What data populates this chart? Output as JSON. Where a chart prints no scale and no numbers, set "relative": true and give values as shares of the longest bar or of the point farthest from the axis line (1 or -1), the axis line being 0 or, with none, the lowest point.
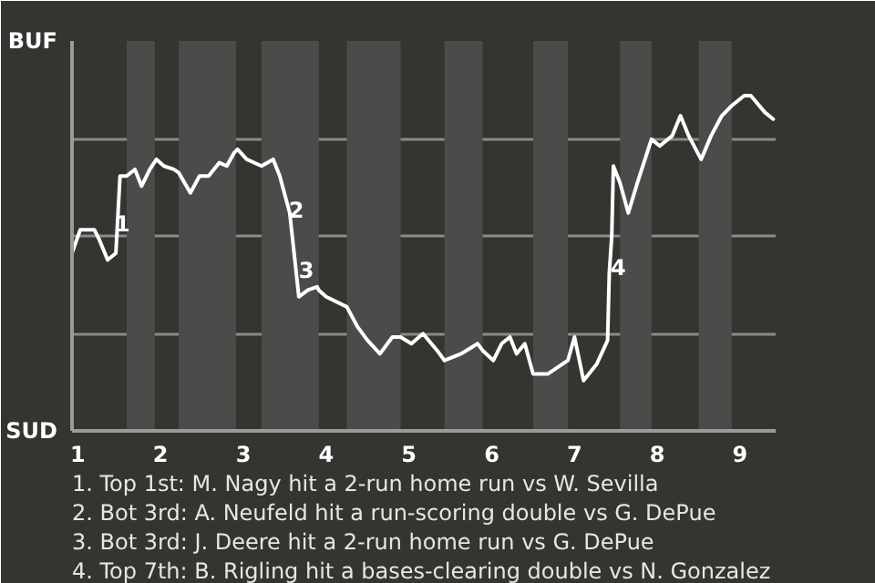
{
  "chart_data": {
    "type": "line",
    "relative": true,
    "xlim": [
      0.93,
      9.43
    ],
    "xticks": [
      {
        "value": 1,
        "label": "1"
      },
      {
        "value": 2,
        "label": "2"
      },
      {
        "value": 3,
        "label": "3"
      },
      {
        "value": 4,
        "label": "4"
      },
      {
        "value": 5,
        "label": "5"
      },
      {
        "value": 6,
        "label": "6"
      },
      {
        "value": 7,
        "label": "7"
      },
      {
        "value": 8,
        "label": "8"
      },
      {
        "value": 9,
        "label": "9"
      }
    ],
    "grid": "y",
    "marker": "none",
    "line_style": "solid",
    "x": [
      0.93,
      1.03,
      1.2,
      1.26,
      1.36,
      1.46,
      1.51,
      1.59,
      1.69,
      1.77,
      1.87,
      1.95,
      2.04,
      2.16,
      2.22,
      2.36,
      2.47,
      2.58,
      2.71,
      2.8,
      2.89,
      2.93,
      3.04,
      3.22,
      3.36,
      3.44,
      3.56,
      3.6,
      3.67,
      3.78,
      3.89,
      3.91,
      4.0,
      4.25,
      4.38,
      4.5,
      4.65,
      4.8,
      4.9,
      5.03,
      5.17,
      5.34,
      5.43,
      5.63,
      5.83,
      5.89,
      6.02,
      6.12,
      6.22,
      6.3,
      6.4,
      6.5,
      6.68,
      6.92,
      7.0,
      7.11,
      7.27,
      7.4,
      7.42,
      7.45,
      7.47,
      7.55,
      7.65,
      7.76,
      7.93,
      8.03,
      8.18,
      8.28,
      8.38,
      8.53,
      8.65,
      8.78,
      8.9,
      9.05,
      9.13,
      9.3,
      9.4
    ],
    "series": [
      {
        "color": "#ffffff",
        "values": [
          0.53,
          0.6,
          0.6,
          0.57,
          0.51,
          0.53,
          0.76,
          0.76,
          0.78,
          0.73,
          0.78,
          0.81,
          0.79,
          0.78,
          0.77,
          0.71,
          0.76,
          0.76,
          0.8,
          0.79,
          0.83,
          0.84,
          0.81,
          0.79,
          0.81,
          0.76,
          0.65,
          0.56,
          0.4,
          0.42,
          0.43,
          0.42,
          0.4,
          0.37,
          0.31,
          0.27,
          0.23,
          0.28,
          0.28,
          0.26,
          0.29,
          0.24,
          0.21,
          0.23,
          0.26,
          0.24,
          0.21,
          0.26,
          0.28,
          0.23,
          0.26,
          0.17,
          0.17,
          0.21,
          0.28,
          0.15,
          0.2,
          0.27,
          0.47,
          0.58,
          0.79,
          0.74,
          0.65,
          0.74,
          0.87,
          0.85,
          0.88,
          0.94,
          0.88,
          0.81,
          0.88,
          0.94,
          0.97,
          1.0,
          1.0,
          0.95,
          0.93
        ]
      }
    ],
    "bands": [
      {
        "axis": "x",
        "from": 1.59,
        "to": 1.93,
        "color": "#4d4b49"
      },
      {
        "axis": "x",
        "from": 2.22,
        "to": 2.91,
        "color": "#4d4b49"
      },
      {
        "axis": "x",
        "from": 3.22,
        "to": 3.91,
        "color": "#4d4b49"
      },
      {
        "axis": "x",
        "from": 4.25,
        "to": 4.9,
        "color": "#4d4b49"
      },
      {
        "axis": "x",
        "from": 5.43,
        "to": 5.89,
        "color": "#4d4b49"
      },
      {
        "axis": "x",
        "from": 6.5,
        "to": 6.92,
        "color": "#4d4b49"
      },
      {
        "axis": "x",
        "from": 7.55,
        "to": 7.93,
        "color": "#4d4b49"
      },
      {
        "axis": "x",
        "from": 8.5,
        "to": 8.9,
        "color": "#4d4b49"
      }
    ],
    "annotations": [
      "BUF",
      "SUD",
      {
        "text": "1",
        "x": 1.54,
        "y": 0.62
      },
      {
        "text": "2",
        "x": 3.64,
        "y": 0.66
      },
      {
        "text": "3",
        "x": 3.76,
        "y": 0.48
      },
      {
        "text": "4",
        "x": 7.53,
        "y": 0.49
      },
      "1. Top 1st: M. Nagy hit a 2-run home run vs W. Sevilla",
      "2. Bot 3rd: A. Neufeld hit a run-scoring double vs G. DePue",
      "3. Bot 3rd: J. Deere hit a 2-run home run vs G. DePue",
      "4. Top 7th: B. Rigling hit a bases-clearing double vs N. Gonzalez"
    ]
  }
}
